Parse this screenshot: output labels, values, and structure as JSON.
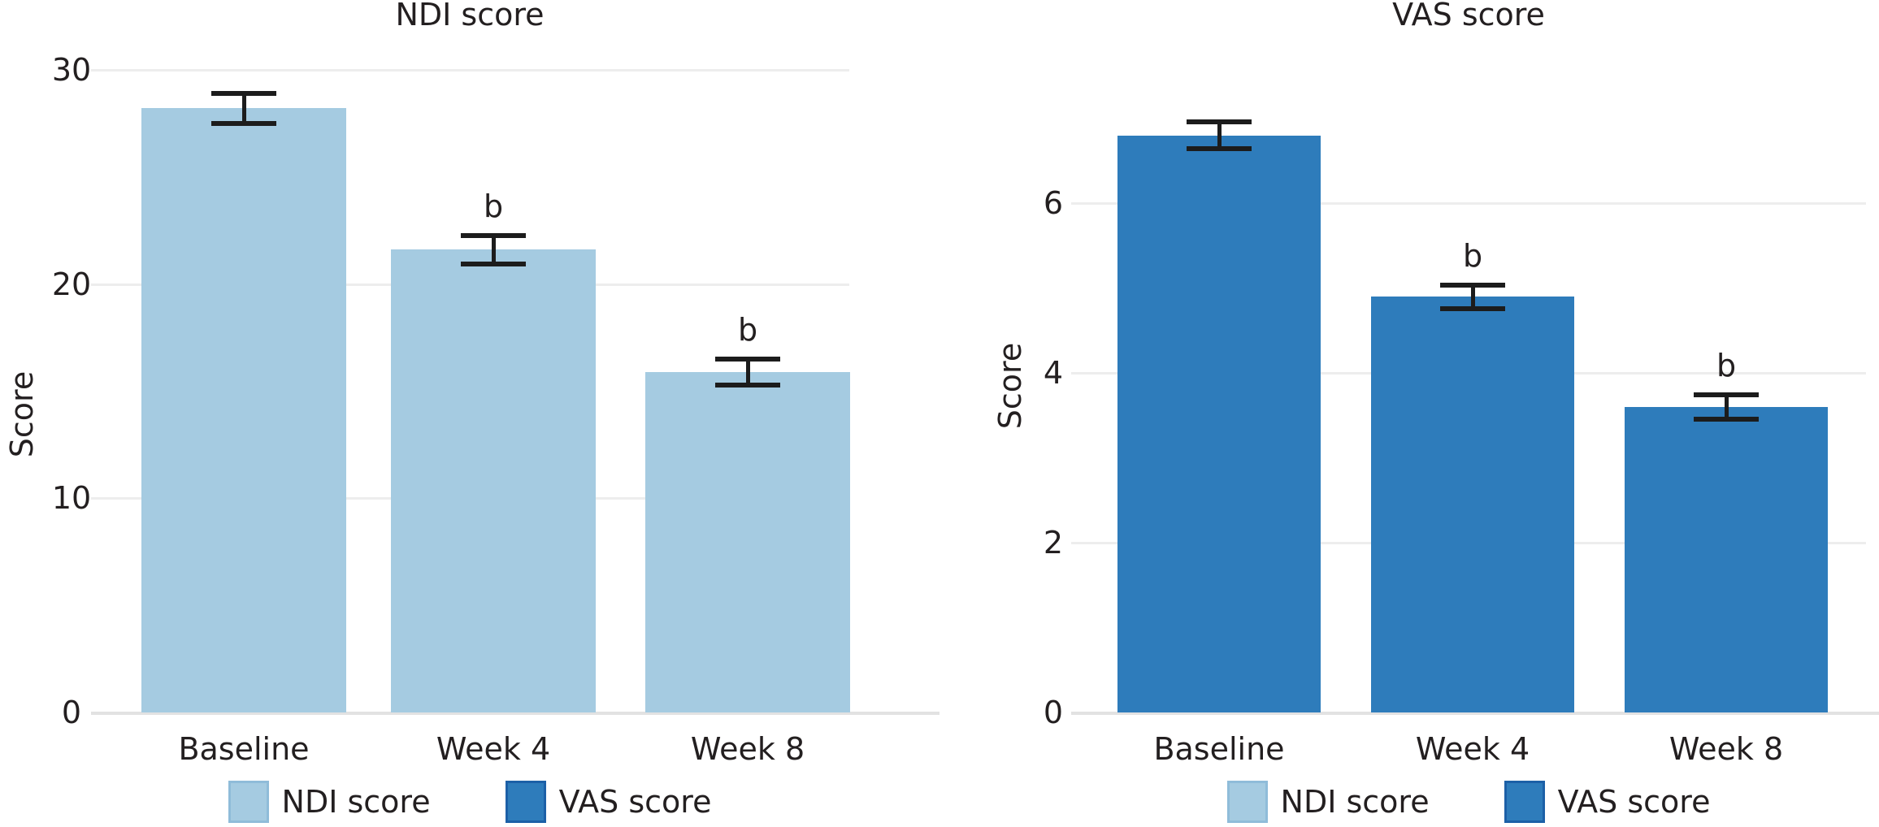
{
  "page": {
    "background": "#ffffff",
    "text_color": "#231f20"
  },
  "colors": {
    "ndi_bar": "#a5cbe1",
    "vas_bar": "#2e7cbb",
    "ndi_swatch_border": "#8fbcd9",
    "vas_swatch_border": "#1c60a7",
    "gridline": "#ededed",
    "axis_line": "#e2e2e2",
    "error_bar": "#1c1c1c"
  },
  "legend": {
    "items": [
      {
        "label": "NDI score",
        "color": "#a5cbe1",
        "border": "#8fbcd9"
      },
      {
        "label": "VAS score",
        "color": "#2e7cbb",
        "border": "#1c60a7"
      }
    ]
  },
  "chart_data": [
    {
      "type": "bar",
      "id": "ndi",
      "title": "NDI score",
      "ylabel": "Score",
      "xlabel": "",
      "categories": [
        "Baseline",
        "Week 4",
        "Week 8"
      ],
      "series": [
        {
          "name": "NDI score",
          "values": [
            28.2,
            21.6,
            15.9
          ],
          "errors": [
            0.7,
            0.65,
            0.6
          ]
        }
      ],
      "annotations": [
        "",
        "b",
        "b"
      ],
      "bar_color": "#a5cbe1",
      "ylim": [
        0,
        31.5
      ],
      "yticks": [
        0,
        10,
        20,
        30
      ],
      "grid": true,
      "legend_position": "bottom"
    },
    {
      "type": "bar",
      "id": "vas",
      "title": "VAS score",
      "ylabel": "Score",
      "xlabel": "",
      "categories": [
        "Baseline",
        "Week 4",
        "Week 8"
      ],
      "series": [
        {
          "name": "VAS score",
          "values": [
            6.8,
            4.9,
            3.6
          ],
          "errors": [
            0.16,
            0.14,
            0.14
          ]
        }
      ],
      "annotations": [
        "",
        "b",
        "b"
      ],
      "bar_color": "#2e7cbb",
      "ylim": [
        0,
        7.5
      ],
      "yticks": [
        0,
        2,
        4,
        6
      ],
      "grid": true,
      "legend_position": "bottom"
    }
  ]
}
